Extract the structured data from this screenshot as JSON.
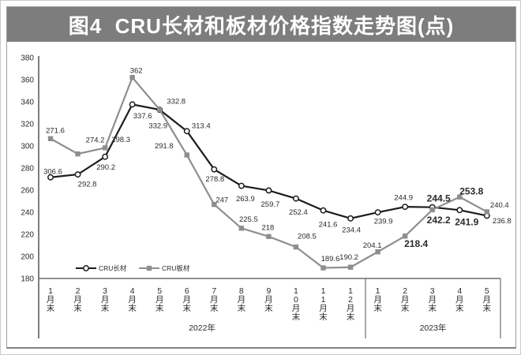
{
  "chart_data": {
    "type": "line",
    "title": "图4  CRU长材和板材价格指数走势图(点)",
    "unit": "点",
    "grid": false,
    "legend_position": "inside-bottom-left",
    "y_axis": {
      "min": 180,
      "max": 380,
      "ticks": [
        380,
        360,
        340,
        320,
        300,
        280,
        260,
        240,
        220,
        200,
        180
      ]
    },
    "categories": [
      "1月末",
      "2月末",
      "3月末",
      "4月末",
      "5月末",
      "6月末",
      "7月末",
      "8月末",
      "9月末",
      "10月末",
      "11月末",
      "12月末",
      "1月末",
      "2月末",
      "3月末",
      "4月末",
      "5月末"
    ],
    "category_groups": [
      {
        "label": "2022年",
        "count": 12
      },
      {
        "label": "2023年",
        "count": 5
      }
    ],
    "series": [
      {
        "name": "CRU长材",
        "marker": "open-circle",
        "color": "#1c1c1c",
        "values": [
          271.6,
          274.2,
          290.2,
          337.6,
          332.8,
          313.4,
          278.8,
          263.9,
          259.7,
          252.4,
          241.6,
          234.4,
          239.9,
          244.9,
          244.5,
          241.9,
          236.8
        ],
        "labels": [
          {
            "t": "271.6",
            "dx": 6,
            "dy": -60
          },
          {
            "t": "274.2",
            "dx": 22,
            "dy": -44
          },
          {
            "t": "290.2",
            "dx": 1,
            "dy": 13
          },
          {
            "t": "337.6",
            "dx": 13,
            "dy": 14
          },
          {
            "t": "332.8",
            "dx": 21,
            "dy": -11
          },
          {
            "t": "313.4",
            "dx": 18,
            "dy": -7
          },
          {
            "t": "278.8",
            "dx": 1,
            "dy": 12
          },
          {
            "t": "263.9",
            "dx": 5,
            "dy": 16
          },
          {
            "t": "259.7",
            "dx": 2,
            "dy": 17
          },
          {
            "t": "252.4",
            "dx": 3,
            "dy": 17
          },
          {
            "t": "241.6",
            "dx": 6,
            "dy": 17
          },
          {
            "t": "234.4",
            "dx": 1,
            "dy": 14
          },
          {
            "t": "239.9",
            "dx": 7,
            "dy": 11
          },
          {
            "t": "244.9",
            "dx": -2,
            "dy": -12
          },
          {
            "t": "244.5",
            "dx": 8,
            "dy": -11,
            "lg": 1
          },
          {
            "t": "241.9",
            "dx": 9,
            "dy": 15,
            "lg": 1
          },
          {
            "t": "236.8",
            "dx": 19,
            "dy": 6
          }
        ]
      },
      {
        "name": "CRU板材",
        "marker": "filled-square",
        "color": "#8e8e8e",
        "values": [
          306.6,
          292.8,
          298.3,
          362,
          332.9,
          291.8,
          247,
          225.5,
          218,
          208.5,
          189.6,
          190.2,
          204.1,
          218.4,
          242.2,
          253.8,
          240.4
        ],
        "labels": [
          {
            "t": "306.6",
            "dx": 3,
            "dy": 41
          },
          {
            "t": "292.8",
            "dx": 12,
            "dy": 38
          },
          {
            "t": "298.3",
            "dx": 20,
            "dy": -11
          },
          {
            "t": "362",
            "dx": 5,
            "dy": -9
          },
          {
            "t": "332.9",
            "dx": -2,
            "dy": 20
          },
          {
            "t": "291.8",
            "dx": -29,
            "dy": -12
          },
          {
            "t": "247",
            "dx": 10,
            "dy": -6
          },
          {
            "t": "225.5",
            "dx": 9,
            "dy": -12
          },
          {
            "t": "218",
            "dx": -1,
            "dy": -12
          },
          {
            "t": "208.5",
            "dx": 14,
            "dy": -14
          },
          {
            "t": "189.6",
            "dx": 9,
            "dy": -12
          },
          {
            "t": "190.2",
            "dx": -2,
            "dy": -13
          },
          {
            "t": "204.1",
            "dx": -7,
            "dy": -9
          },
          {
            "t": "218.4",
            "dx": 14,
            "dy": 10,
            "lg": 1
          },
          {
            "t": "242.2",
            "dx": 8,
            "dy": 13,
            "lg": 1
          },
          {
            "t": "253.8",
            "dx": 15,
            "dy": -7,
            "lg": 1
          },
          {
            "t": "240.4",
            "dx": 16,
            "dy": -9
          }
        ]
      }
    ]
  },
  "colors": {
    "title_bar_bg": "#7d7d7d",
    "title_text": "#ffffff",
    "axis_line": "#6f6f6f",
    "data_label_text": "#2b2b2b",
    "long_series": "#1c1c1c",
    "flat_series": "#8e8e8e"
  }
}
